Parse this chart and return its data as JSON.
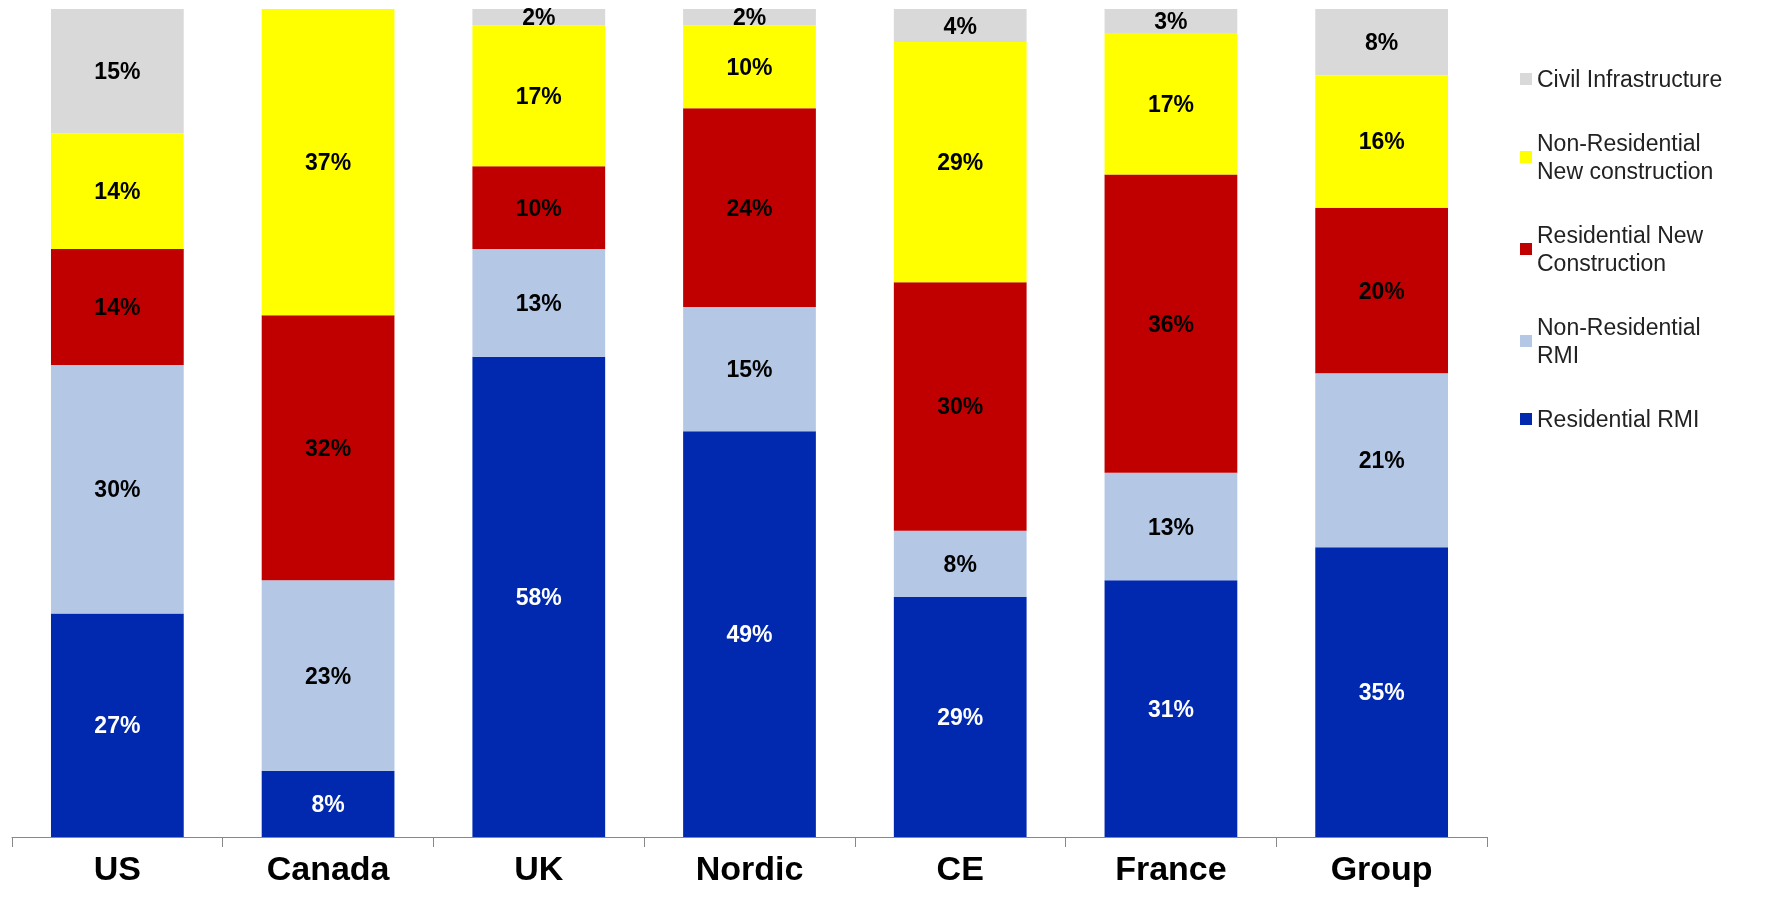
{
  "chart_data": {
    "type": "bar",
    "stacked": true,
    "legend": "right",
    "categories": [
      "US",
      "Canada",
      "UK",
      "Nordic",
      "CE",
      "France",
      "Group"
    ],
    "series": [
      {
        "name": "Residential RMI",
        "color": "#0029b0",
        "values": [
          27,
          8,
          58,
          49,
          29,
          31,
          35
        ],
        "value_labels": [
          "27%",
          "8%",
          "58%",
          "49%",
          "29%",
          "31%",
          "35%"
        ]
      },
      {
        "name": "Non-Residential RMI",
        "color": "#b4c8e6",
        "values": [
          30,
          23,
          13,
          15,
          8,
          13,
          21
        ],
        "value_labels": [
          "30%",
          "23%",
          "13%",
          "15%",
          "8%",
          "13%",
          "21%"
        ]
      },
      {
        "name": "Residential New Construction",
        "color": "#c00000",
        "values": [
          14,
          32,
          10,
          24,
          30,
          36,
          20
        ],
        "value_labels": [
          "14%",
          "32%",
          "10%",
          "24%",
          "30%",
          "36%",
          "20%"
        ]
      },
      {
        "name": "Non-Residential New construction",
        "color": "#ffff00",
        "values": [
          14,
          37,
          17,
          10,
          29,
          17,
          16
        ],
        "value_labels": [
          "14%",
          "37%",
          "17%",
          "10%",
          "29%",
          "17%",
          "16%"
        ]
      },
      {
        "name": "Civil Infrastructure",
        "color": "#d9d9d9",
        "values": [
          15,
          null,
          2,
          2,
          4,
          3,
          8
        ],
        "value_labels": [
          "15%",
          null,
          "2%",
          "2%",
          "4%",
          "3%",
          "8%"
        ]
      }
    ]
  }
}
